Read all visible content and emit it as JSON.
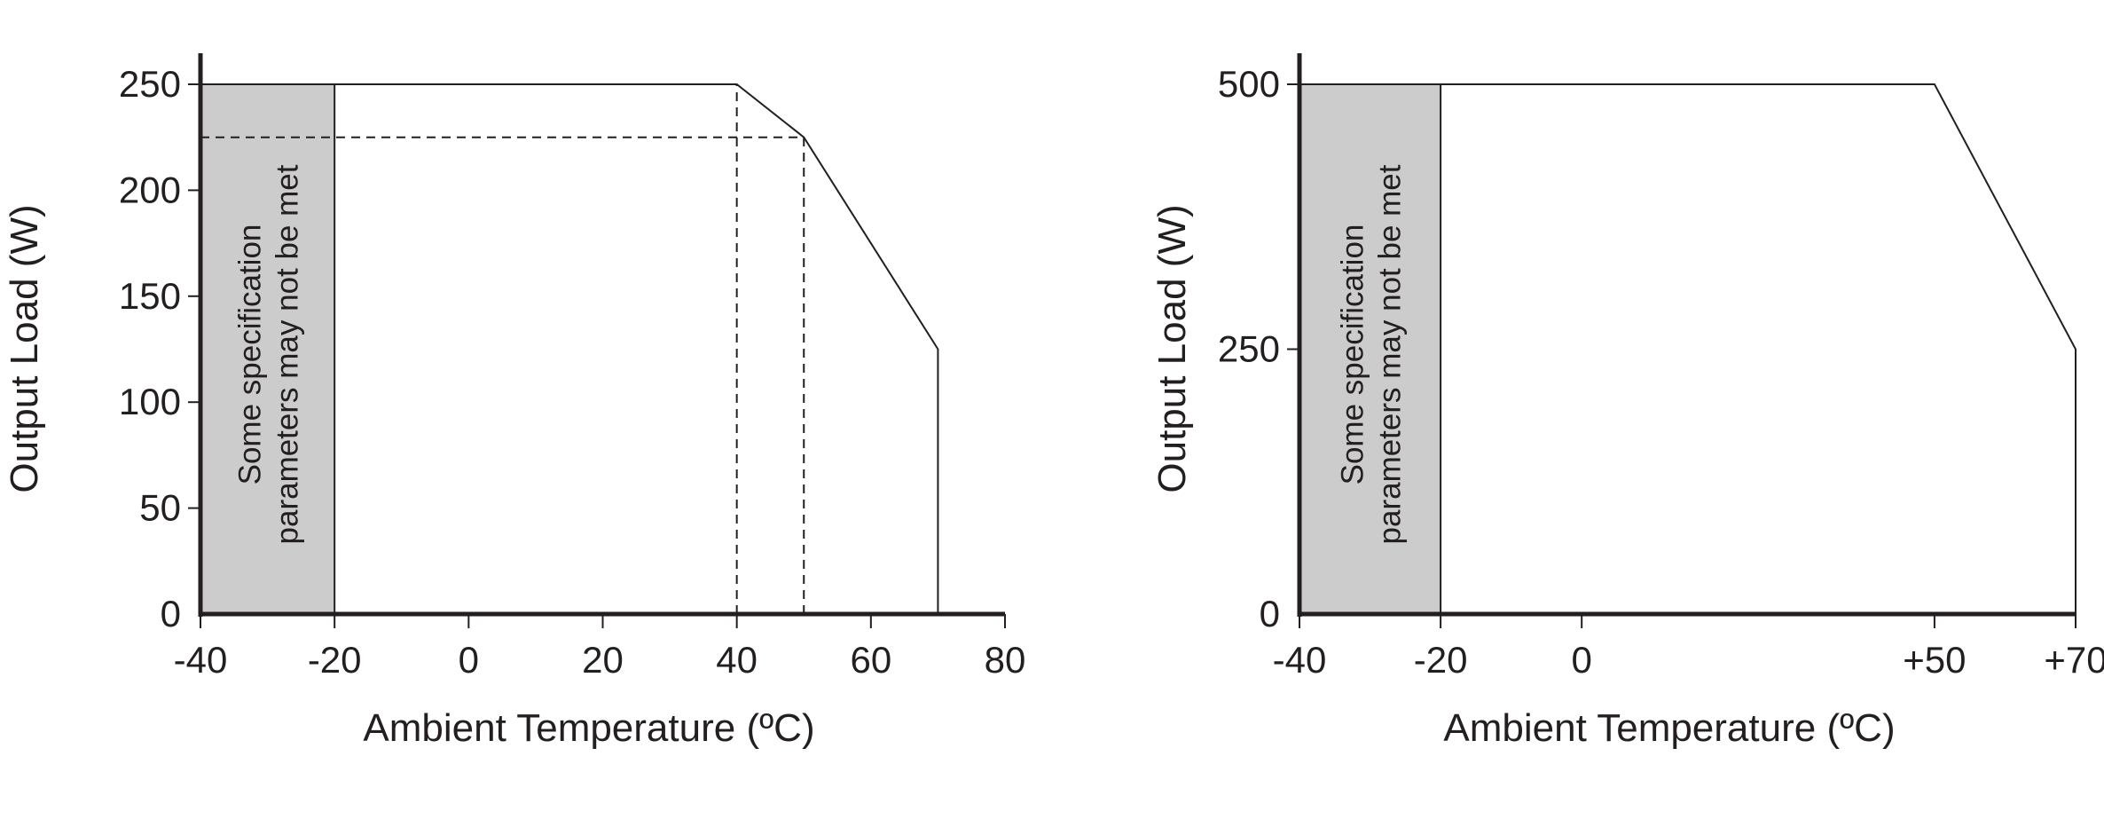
{
  "chart_data": [
    {
      "type": "line",
      "xlabel": "Ambient Temperature (ºC)",
      "ylabel": "Output Load (W)",
      "xlim": [
        -40,
        80
      ],
      "ylim": [
        0,
        250
      ],
      "x_ticks": [
        -40,
        -20,
        0,
        20,
        40,
        60,
        80
      ],
      "x_tick_labels": [
        "-40",
        "-20",
        "0",
        "20",
        "40",
        "60",
        "80"
      ],
      "y_ticks": [
        0,
        50,
        100,
        150,
        200,
        250
      ],
      "y_tick_labels": [
        "0",
        "50",
        "100",
        "150",
        "200",
        "250"
      ],
      "series": [
        {
          "x": [
            -40,
            40,
            50,
            70,
            70
          ],
          "y": [
            250,
            250,
            225,
            125,
            0
          ]
        }
      ],
      "reference_lines": [
        {
          "points": [
            [
              -40,
              225
            ],
            [
              50,
              225
            ]
          ]
        },
        {
          "points": [
            [
              40,
              0
            ],
            [
              40,
              250
            ]
          ]
        },
        {
          "points": [
            [
              50,
              0
            ],
            [
              50,
              225
            ]
          ]
        }
      ],
      "shaded_region": {
        "x": [
          -40,
          -20
        ],
        "y": [
          0,
          250
        ],
        "color": "#cccccc",
        "text_lines": [
          "Some specification",
          "parameters may not be met"
        ]
      },
      "grid": false
    },
    {
      "type": "line",
      "xlabel": "Ambient Temperature (ºC)",
      "ylabel": "Output Load (W)",
      "xlim": [
        -40,
        70
      ],
      "ylim": [
        0,
        500
      ],
      "x_ticks": [
        -40,
        -20,
        0,
        50,
        70
      ],
      "x_tick_labels": [
        "-40",
        "-20",
        "0",
        "+50",
        "+70"
      ],
      "y_ticks": [
        0,
        250,
        500
      ],
      "y_tick_labels": [
        "0",
        "250",
        "500"
      ],
      "series": [
        {
          "x": [
            -40,
            50,
            70,
            70
          ],
          "y": [
            500,
            500,
            250,
            0
          ]
        }
      ],
      "reference_lines": [],
      "shaded_region": {
        "x": [
          -40,
          -20
        ],
        "y": [
          0,
          500
        ],
        "color": "#cccccc",
        "text_lines": [
          "Some specification",
          "parameters may not be met"
        ]
      },
      "grid": false
    }
  ],
  "colors": {
    "ink": "#231f20",
    "shade": "#cccccc"
  }
}
